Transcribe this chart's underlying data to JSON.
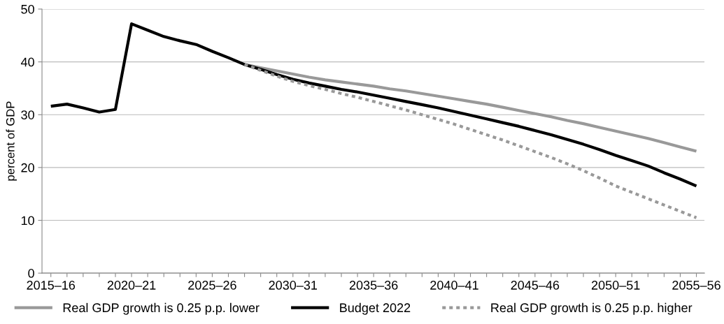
{
  "chart_data": {
    "type": "line",
    "ylabel": "percent of GDP",
    "categories": [
      "2015–16",
      null,
      null,
      null,
      null,
      "2020–21",
      null,
      null,
      null,
      null,
      "2025–26",
      null,
      null,
      null,
      null,
      "2030–31",
      null,
      null,
      null,
      null,
      "2035–36",
      null,
      null,
      null,
      null,
      "2040–41",
      null,
      null,
      null,
      null,
      "2045–46",
      null,
      null,
      null,
      null,
      "2050–51",
      null,
      null,
      null,
      null,
      "2055–56"
    ],
    "series": [
      {
        "name": "Real GDP growth is 0.25 p.p. lower",
        "color": "#999999",
        "line_style": "solid",
        "values": [
          null,
          null,
          null,
          null,
          null,
          null,
          null,
          null,
          null,
          null,
          null,
          null,
          39.5,
          38.9,
          38.3,
          37.7,
          37.1,
          36.6,
          36.2,
          35.8,
          35.4,
          34.9,
          34.5,
          34.0,
          33.5,
          33.0,
          32.5,
          32.0,
          31.4,
          30.8,
          30.2,
          29.6,
          28.9,
          28.3,
          27.6,
          26.9,
          26.2,
          25.5,
          24.7,
          23.9,
          23.1
        ]
      },
      {
        "name": "Budget 2022",
        "color": "#000000",
        "line_style": "solid",
        "values": [
          31.6,
          32.0,
          31.3,
          30.5,
          31.0,
          47.2,
          46.0,
          44.8,
          44.0,
          43.3,
          42.0,
          40.8,
          39.5,
          38.6,
          37.6,
          36.7,
          36.0,
          35.4,
          34.8,
          34.3,
          33.7,
          33.1,
          32.5,
          31.9,
          31.3,
          30.6,
          29.9,
          29.2,
          28.5,
          27.8,
          27.0,
          26.2,
          25.3,
          24.4,
          23.4,
          22.3,
          21.3,
          20.3,
          19.0,
          17.8,
          16.5
        ]
      },
      {
        "name": "Real GDP growth is 0.25 p.p. higher",
        "color": "#999999",
        "line_style": "dotted",
        "values": [
          null,
          null,
          null,
          null,
          null,
          null,
          null,
          null,
          null,
          null,
          null,
          null,
          39.5,
          38.4,
          37.3,
          36.3,
          35.5,
          34.8,
          34.0,
          33.3,
          32.5,
          31.7,
          30.9,
          30.0,
          29.1,
          28.2,
          27.2,
          26.2,
          25.2,
          24.1,
          23.0,
          21.9,
          20.7,
          19.4,
          18.0,
          16.5,
          15.3,
          14.1,
          12.9,
          11.7,
          10.5
        ]
      }
    ],
    "ylim": [
      0,
      50
    ],
    "yticks": [
      0,
      10,
      20,
      30,
      40,
      50
    ],
    "grid": "y",
    "legend": "bottom",
    "marker": "none"
  }
}
